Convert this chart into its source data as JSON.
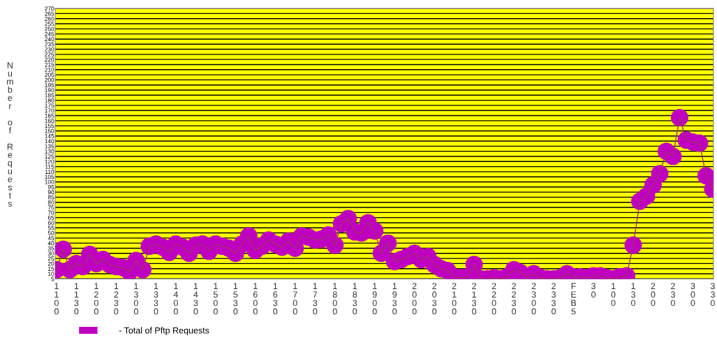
{
  "chart_data": {
    "type": "line",
    "ylabel": "Number of Requests",
    "categories": [
      "1100",
      null,
      null,
      "1130",
      null,
      null,
      "1200",
      null,
      null,
      "1230",
      null,
      null,
      "1300",
      null,
      null,
      "1330",
      null,
      null,
      "1400",
      null,
      null,
      "1430",
      null,
      null,
      "1500",
      null,
      null,
      "1530",
      null,
      null,
      "1600",
      null,
      null,
      "1630",
      null,
      null,
      "1700",
      null,
      null,
      "1730",
      null,
      null,
      "1800",
      null,
      null,
      "1830",
      null,
      null,
      "1900",
      null,
      null,
      "1930",
      null,
      null,
      "2000",
      null,
      null,
      "2030",
      null,
      null,
      "2100",
      null,
      null,
      "2130",
      null,
      null,
      "2200",
      null,
      null,
      "2230",
      null,
      null,
      "2300",
      null,
      null,
      "2330",
      null,
      null,
      "FEB5",
      null,
      null,
      "30",
      null,
      null,
      "100",
      null,
      null,
      "130",
      null,
      null,
      "200",
      null,
      null,
      "230",
      null,
      null,
      "300",
      null,
      null,
      "330"
    ],
    "series": [
      {
        "name": "- Total of Pftp Requests",
        "color": "#c000c0",
        "values": [
          14,
          34,
          14,
          20,
          17,
          29,
          20,
          24,
          19,
          17,
          16,
          12,
          23,
          14,
          37,
          39,
          36,
          31,
          39,
          36,
          30,
          38,
          39,
          32,
          39,
          37,
          35,
          30,
          39,
          47,
          33,
          37,
          43,
          39,
          36,
          42,
          35,
          47,
          46,
          43,
          44,
          48,
          38,
          59,
          64,
          51,
          50,
          60,
          52,
          30,
          40,
          22,
          24,
          27,
          30,
          24,
          27,
          19,
          15,
          13,
          7,
          6,
          7,
          19,
          5,
          5,
          6,
          5,
          7,
          14,
          11,
          6,
          10,
          6,
          5,
          5,
          6,
          10,
          7,
          7,
          6,
          8,
          8,
          6,
          5,
          7,
          8,
          38,
          81,
          86,
          97,
          108,
          130,
          125,
          163,
          141,
          139,
          138,
          106,
          93
        ]
      }
    ],
    "ylim": [
      5,
      270
    ],
    "yticks": [
      5,
      10,
      15,
      20,
      25,
      30,
      35,
      40,
      45,
      50,
      55,
      60,
      65,
      70,
      75,
      80,
      85,
      90,
      95,
      100,
      105,
      110,
      115,
      120,
      125,
      130,
      135,
      140,
      145,
      150,
      155,
      160,
      165,
      170,
      175,
      180,
      185,
      190,
      195,
      200,
      205,
      210,
      215,
      220,
      225,
      230,
      235,
      240,
      245,
      250,
      255,
      260,
      265,
      270
    ],
    "grid": "y",
    "legend": "bottom left",
    "marker": "circle",
    "line_style": "solid"
  }
}
